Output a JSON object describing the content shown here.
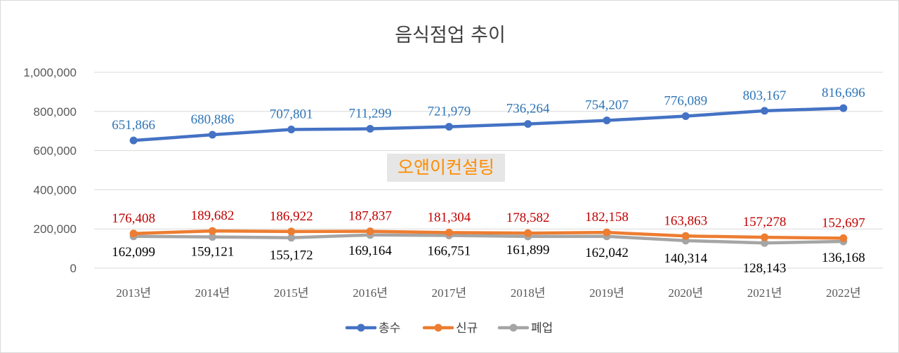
{
  "chart_data": {
    "type": "line",
    "title": "음식점업 추이",
    "categories": [
      "2013년",
      "2014년",
      "2015년",
      "2016년",
      "2017년",
      "2018년",
      "2019년",
      "2020년",
      "2021년",
      "2022년"
    ],
    "ylim": [
      0,
      1000000
    ],
    "yticks": [
      0,
      200000,
      400000,
      600000,
      800000,
      1000000
    ],
    "ytick_labels": [
      "0",
      "200,000",
      "400,000",
      "600,000",
      "800,000",
      "1,000,000"
    ],
    "grid": true,
    "legend_position": "bottom",
    "series": [
      {
        "name": "총수",
        "color": "#4472c4",
        "label_color": "#2e75b6",
        "values": [
          651866,
          680886,
          707801,
          711299,
          721979,
          736264,
          754207,
          776089,
          803167,
          816696
        ],
        "labels": [
          "651,866",
          "680,886",
          "707,801",
          "711,299",
          "721,979",
          "736,264",
          "754,207",
          "776,089",
          "803,167",
          "816,696"
        ]
      },
      {
        "name": "신규",
        "color": "#ed7d31",
        "label_color": "#c00000",
        "values": [
          176408,
          189682,
          186922,
          187837,
          181304,
          178582,
          182158,
          163863,
          157278,
          152697
        ],
        "labels": [
          "176,408",
          "189,682",
          "186,922",
          "187,837",
          "181,304",
          "178,582",
          "182,158",
          "163,863",
          "157,278",
          "152,697"
        ]
      },
      {
        "name": "폐업",
        "color": "#a5a5a5",
        "label_color": "#000000",
        "values": [
          162099,
          159121,
          155172,
          169164,
          166751,
          161899,
          162042,
          140314,
          128143,
          136168
        ],
        "labels": [
          "162,099",
          "159,121",
          "155,172",
          "169,164",
          "166,751",
          "161,899",
          "162,042",
          "140,314",
          "128,143",
          "136,168"
        ]
      }
    ]
  },
  "watermark": "오앤이컨설팅"
}
